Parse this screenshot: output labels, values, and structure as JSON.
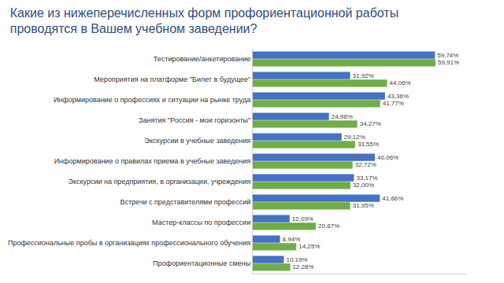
{
  "chart_data": {
    "type": "bar",
    "orientation": "horizontal",
    "title": "Какие из нижеперечисленных форм профориентационной работы проводятся в Вашем учебном заведении?",
    "categories": [
      "Тестирование/анкетирование",
      "Мероприятия на платформе \"Билет в будущее\"",
      "Информирование о профессиях и ситуации на рынке труда",
      "Занятия \"Россия - мои горизонты\"",
      "Экскурсии в учебные заведения",
      "Информирование о правилах приема в учебные заведения",
      "Экскурсии на предприятия, в организации, учреждения",
      "Встречи с представителями профессий",
      "Мастер-классы по профессии",
      "Профессиональные пробы в организациях профессионального обучения",
      "Профориентационные смены"
    ],
    "series": [
      {
        "color": "#4472c4",
        "values": [
          59.74,
          31.92,
          43.36,
          24.98,
          29.12,
          40.06,
          33.17,
          41.66,
          12.09,
          8.94,
          10.19
        ],
        "value_labels": [
          "59,74%",
          "31,92%",
          "43,36%",
          "24,98%",
          "29,12%",
          "40,06%",
          "33,17%",
          "41,66%",
          "12,09%",
          "8,94%",
          "10,19%"
        ]
      },
      {
        "color": "#70ad47",
        "values": [
          59.91,
          44.06,
          41.77,
          34.27,
          33.55,
          32.72,
          32.0,
          31.95,
          20.67,
          14.25,
          12.28
        ],
        "value_labels": [
          "59,91%",
          "44,06%",
          "41,77%",
          "34,27%",
          "33,55%",
          "32,72%",
          "32,00%",
          "31,95%",
          "20,67%",
          "14,25%",
          "12,28%"
        ]
      }
    ],
    "xlim": [
      0,
      70
    ],
    "grid": false,
    "data_labels": true,
    "tick_labels": "y"
  }
}
